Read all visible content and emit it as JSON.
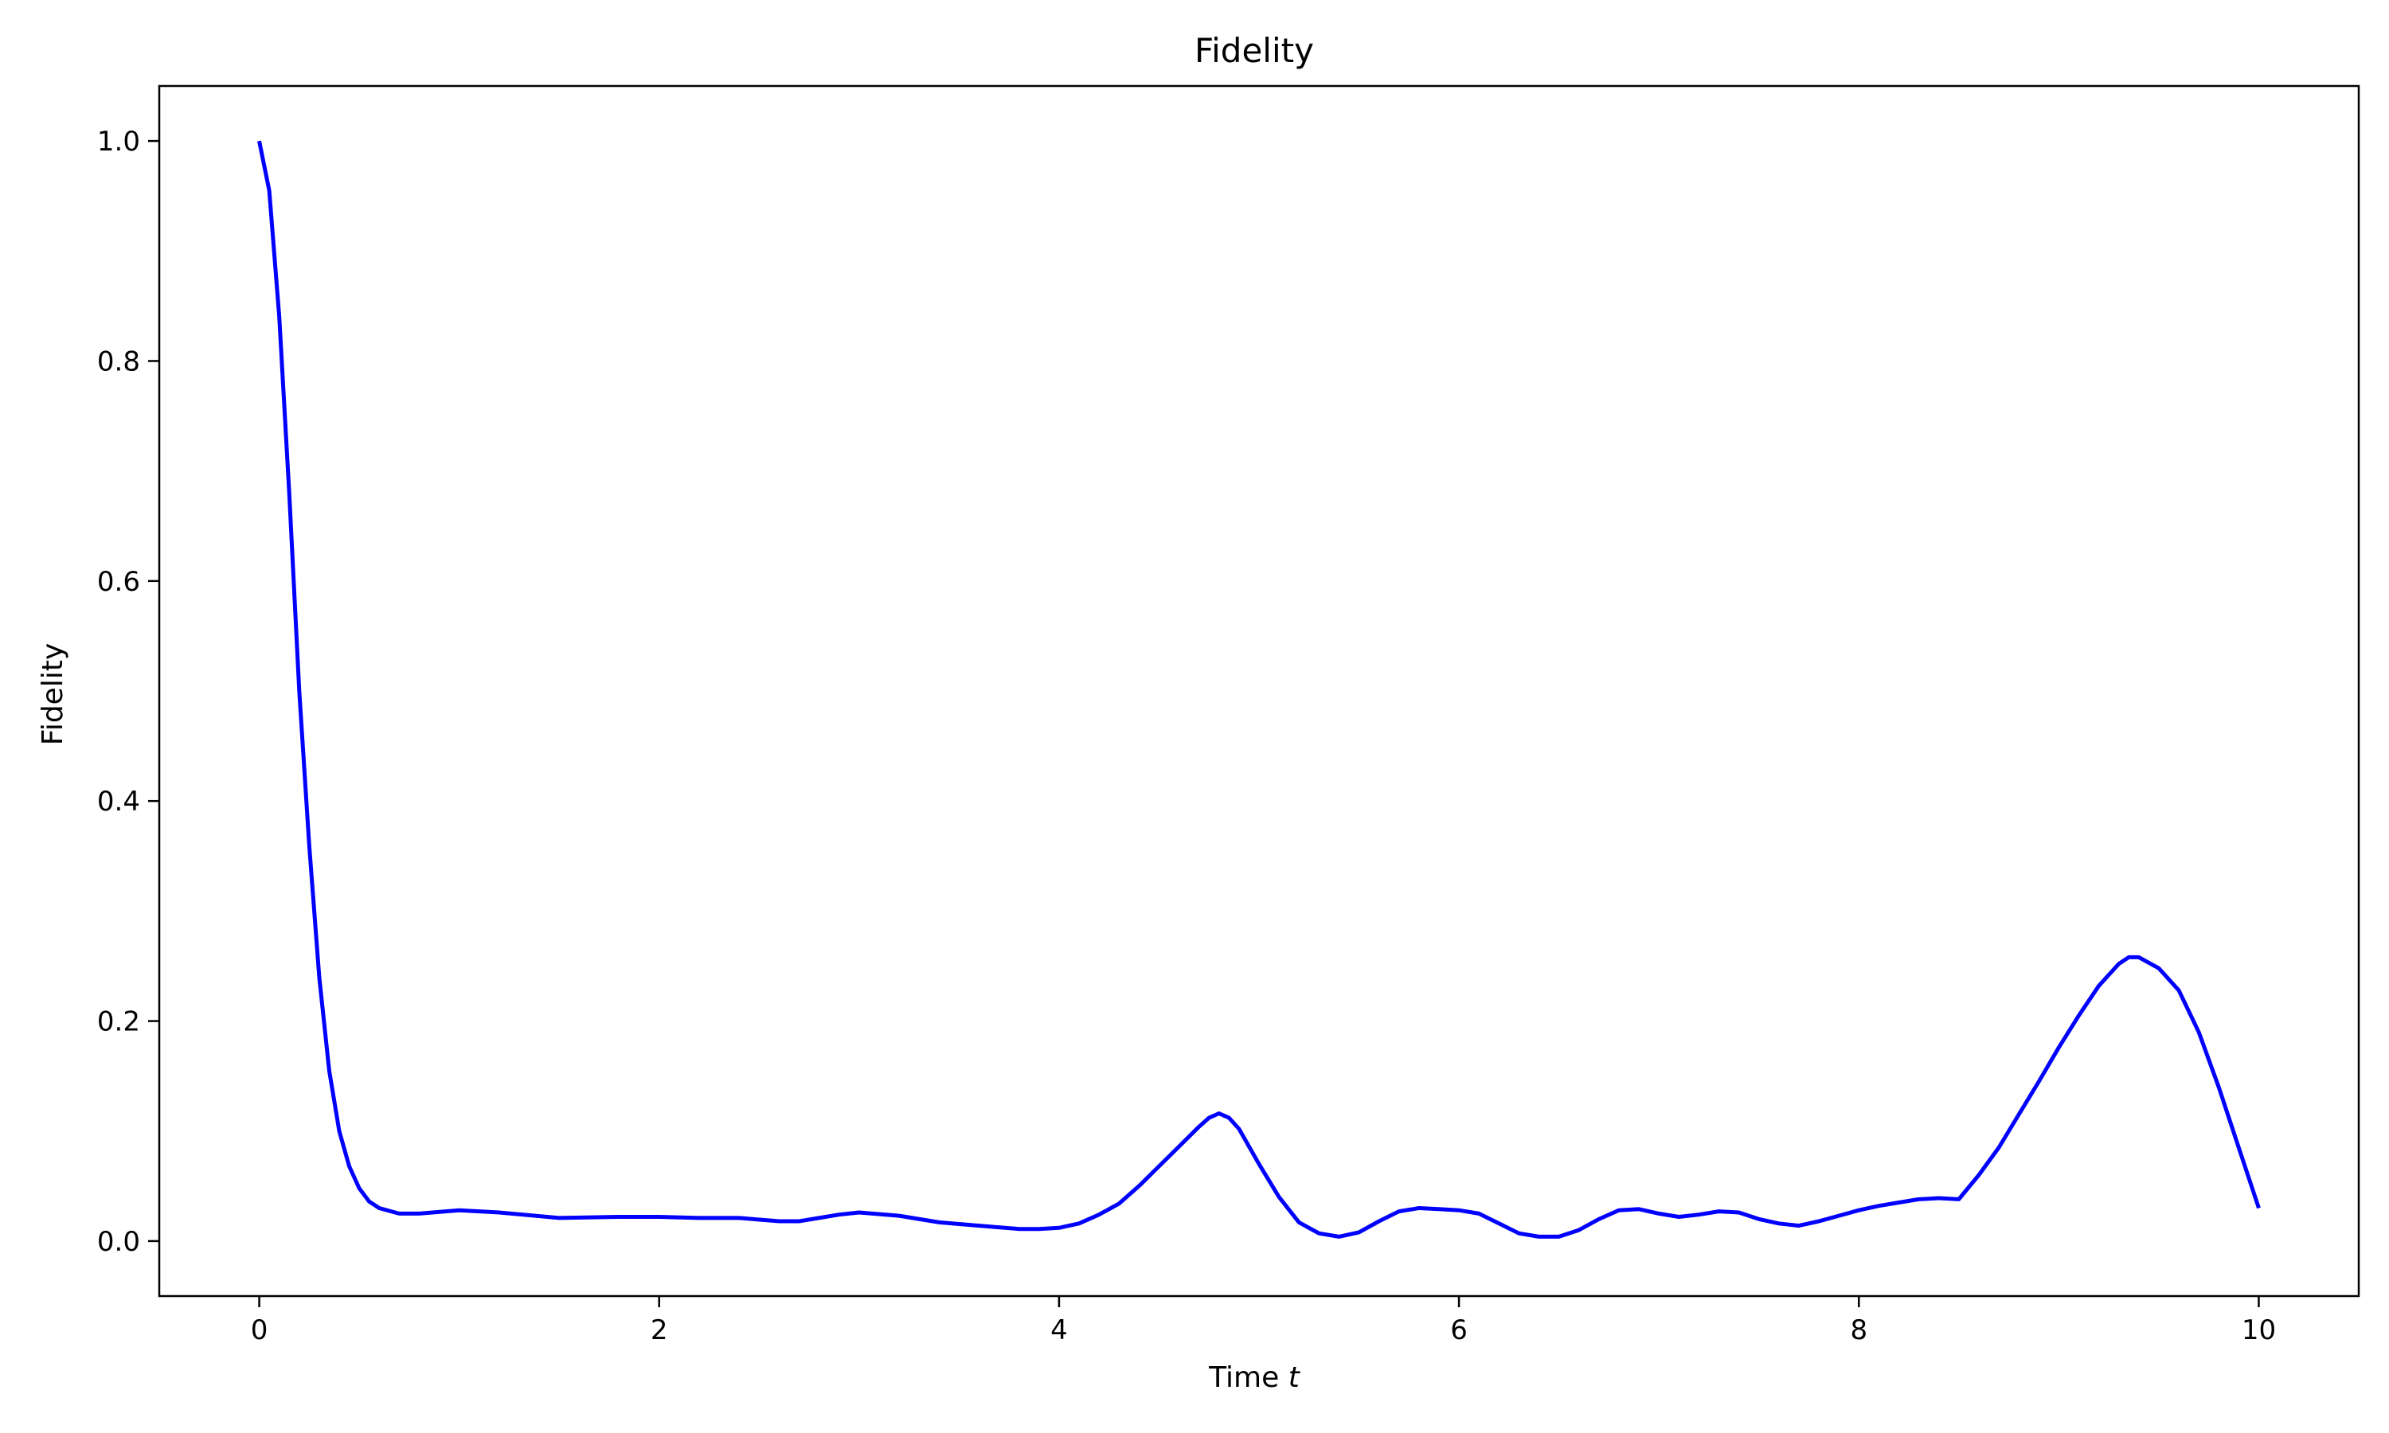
{
  "chart_data": {
    "type": "line",
    "title": "Fidelity",
    "xlabel": "Time",
    "xlabel_var": "t",
    "ylabel": "Fidelity",
    "xlim": [
      -0.5,
      10.5
    ],
    "ylim": [
      -0.05,
      1.05
    ],
    "xticks": [
      0,
      2,
      4,
      6,
      8,
      10
    ],
    "xtick_labels": [
      "0",
      "2",
      "4",
      "6",
      "8",
      "10"
    ],
    "yticks": [
      0.0,
      0.2,
      0.4,
      0.6,
      0.8,
      1.0
    ],
    "ytick_labels": [
      "0.0",
      "0.2",
      "0.4",
      "0.6",
      "0.8",
      "1.0"
    ],
    "grid": false,
    "series": [
      {
        "color": "#0000ff",
        "x": [
          0,
          0.05,
          0.1,
          0.15,
          0.2,
          0.25,
          0.3,
          0.35,
          0.4,
          0.45,
          0.5,
          0.55,
          0.6,
          0.7,
          0.8,
          1.0,
          1.2,
          1.5,
          1.8,
          2.0,
          2.2,
          2.4,
          2.6,
          2.7,
          2.9,
          3.0,
          3.2,
          3.4,
          3.6,
          3.8,
          3.9,
          4.0,
          4.1,
          4.2,
          4.3,
          4.4,
          4.5,
          4.6,
          4.7,
          4.75,
          4.8,
          4.85,
          4.9,
          5.0,
          5.1,
          5.2,
          5.3,
          5.4,
          5.5,
          5.6,
          5.7,
          5.8,
          5.9,
          6.0,
          6.1,
          6.2,
          6.3,
          6.4,
          6.5,
          6.6,
          6.7,
          6.8,
          6.9,
          7.0,
          7.1,
          7.2,
          7.3,
          7.4,
          7.5,
          7.6,
          7.7,
          7.8,
          7.9,
          8.0,
          8.1,
          8.2,
          8.3,
          8.4,
          8.5,
          8.6,
          8.7,
          8.8,
          8.9,
          9.0,
          9.1,
          9.2,
          9.3,
          9.35,
          9.4,
          9.5,
          9.6,
          9.7,
          9.8,
          9.9,
          10.0
        ],
        "y": [
          1.0,
          0.955,
          0.84,
          0.68,
          0.5,
          0.36,
          0.24,
          0.155,
          0.1,
          0.068,
          0.048,
          0.036,
          0.03,
          0.025,
          0.025,
          0.028,
          0.026,
          0.021,
          0.022,
          0.022,
          0.021,
          0.021,
          0.018,
          0.018,
          0.024,
          0.026,
          0.023,
          0.017,
          0.014,
          0.011,
          0.011,
          0.012,
          0.016,
          0.024,
          0.034,
          0.05,
          0.068,
          0.086,
          0.104,
          0.112,
          0.116,
          0.112,
          0.102,
          0.07,
          0.04,
          0.017,
          0.007,
          0.004,
          0.008,
          0.018,
          0.027,
          0.03,
          0.029,
          0.028,
          0.025,
          0.016,
          0.007,
          0.004,
          0.004,
          0.01,
          0.02,
          0.028,
          0.029,
          0.025,
          0.022,
          0.024,
          0.027,
          0.026,
          0.02,
          0.016,
          0.014,
          0.018,
          0.023,
          0.028,
          0.032,
          0.035,
          0.038,
          0.039,
          0.038,
          0.06,
          0.085,
          0.115,
          0.145,
          0.176,
          0.205,
          0.232,
          0.252,
          0.258,
          0.258,
          0.248,
          0.228,
          0.19,
          0.14,
          0.085,
          0.03
        ]
      }
    ]
  }
}
